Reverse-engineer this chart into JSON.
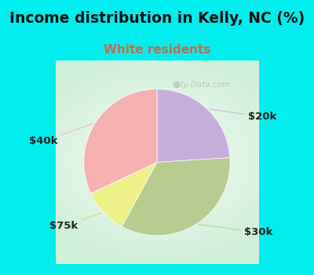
{
  "title": "Income distribution in Kelly, NC (%)",
  "subtitle": "White residents",
  "title_fontsize": 13.5,
  "subtitle_fontsize": 11,
  "bg_color": "#00EEEE",
  "chart_bg": "#e0f0e8",
  "slices": [
    {
      "label": "$20k",
      "value": 24,
      "color": "#c8aedd"
    },
    {
      "label": "$30k",
      "value": 34,
      "color": "#b8cc90"
    },
    {
      "label": "$75k",
      "value": 10,
      "color": "#eef08a"
    },
    {
      "label": "$40k",
      "value": 32,
      "color": "#f5b0b0"
    }
  ],
  "startangle": 90,
  "label_fontsize": 9.5,
  "watermark": "City-Data.com",
  "label_color": "#222222",
  "subtitle_color": "#cc6644"
}
